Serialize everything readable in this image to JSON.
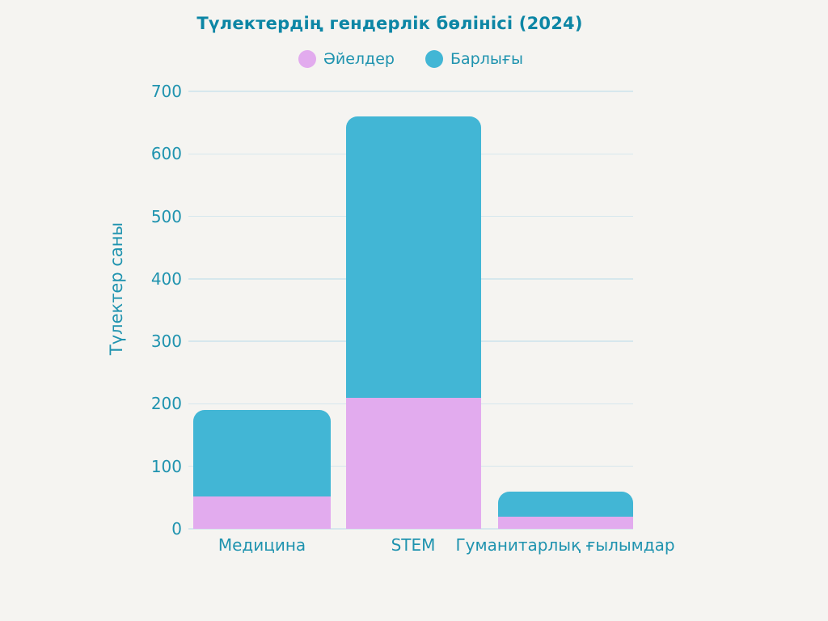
{
  "chart_data": {
    "type": "bar",
    "variant": "overlapped",
    "title": "Түлектердің гендерлік бөлінісі (2024)",
    "categories": [
      "Медицина",
      "STEM",
      "Гуманитарлық ғылымдар"
    ],
    "series": [
      {
        "id": "women",
        "name": "Әйелдер",
        "color": "#e2abee",
        "values": [
          52,
          210,
          20
        ]
      },
      {
        "id": "total",
        "name": "Барлығы",
        "color": "#42b6d5",
        "values": [
          190,
          660,
          60
        ]
      }
    ],
    "xlabel": "",
    "ylabel": "Түлектер саны",
    "ylim": [
      0,
      700
    ],
    "yticks": [
      0,
      100,
      200,
      300,
      400,
      500,
      600,
      700
    ],
    "grid": true,
    "legend_position": "top"
  },
  "colors": {
    "background": "#f5f4f1",
    "title_text": "#0d86a5",
    "axis_text": "#1f93af",
    "gridline": "#d6e7ed",
    "women_fill": "#e2abee",
    "total_fill": "#42b6d5"
  }
}
